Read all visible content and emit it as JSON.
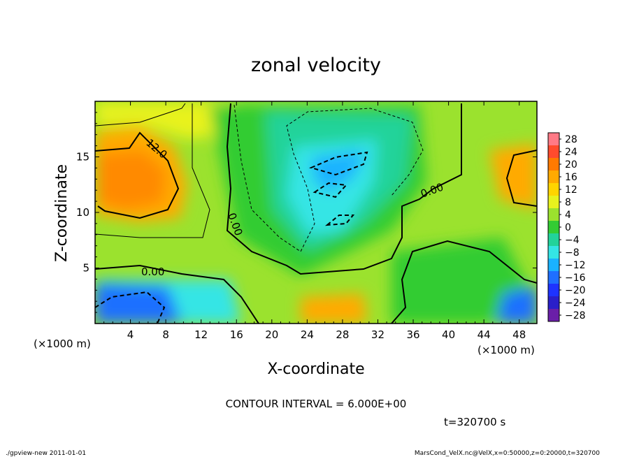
{
  "chart_data": {
    "type": "heatmap",
    "title": "zonal velocity",
    "xlabel": "X-coordinate",
    "ylabel": "Z-coordinate",
    "x_unit_label": "(×1000 m)",
    "y_unit_label": "(×1000 m)",
    "xlim": [
      0,
      50
    ],
    "ylim": [
      0,
      20
    ],
    "x_ticks": [
      "4",
      "8",
      "12",
      "16",
      "20",
      "24",
      "28",
      "32",
      "36",
      "40",
      "44",
      "48"
    ],
    "y_ticks": [
      "5",
      "10",
      "15"
    ],
    "contour_labels": [
      "12.0",
      "0.00",
      "0.00",
      "0.00"
    ],
    "contour_interval_text": "CONTOUR INTERVAL = 6.000E+00",
    "time_text": "t=320700 s",
    "colorbar": {
      "levels": [
        28,
        24,
        20,
        16,
        12,
        8,
        4,
        0,
        -4,
        -8,
        -12,
        -16,
        -20,
        -24,
        -28
      ],
      "labels": [
        "28",
        "24",
        "20",
        "16",
        "12",
        "8",
        "4",
        "0",
        "−4",
        "−8",
        "−12",
        "−16",
        "−20",
        "−24",
        "−28"
      ],
      "colors": [
        "#ff7a86",
        "#ff4b2d",
        "#ff7a00",
        "#ffaa00",
        "#ffd400",
        "#e8f21e",
        "#9be22e",
        "#33cc33",
        "#22d39a",
        "#34e5e5",
        "#1ab2ff",
        "#1f6fff",
        "#1e33ff",
        "#2a1fc9",
        "#6a1fa8"
      ]
    }
  },
  "footer": {
    "left": "./gpview-new   2011-01-01",
    "right": "MarsCond_VelX.nc@VelX,x=0:50000,z=0:20000,t=320700"
  }
}
